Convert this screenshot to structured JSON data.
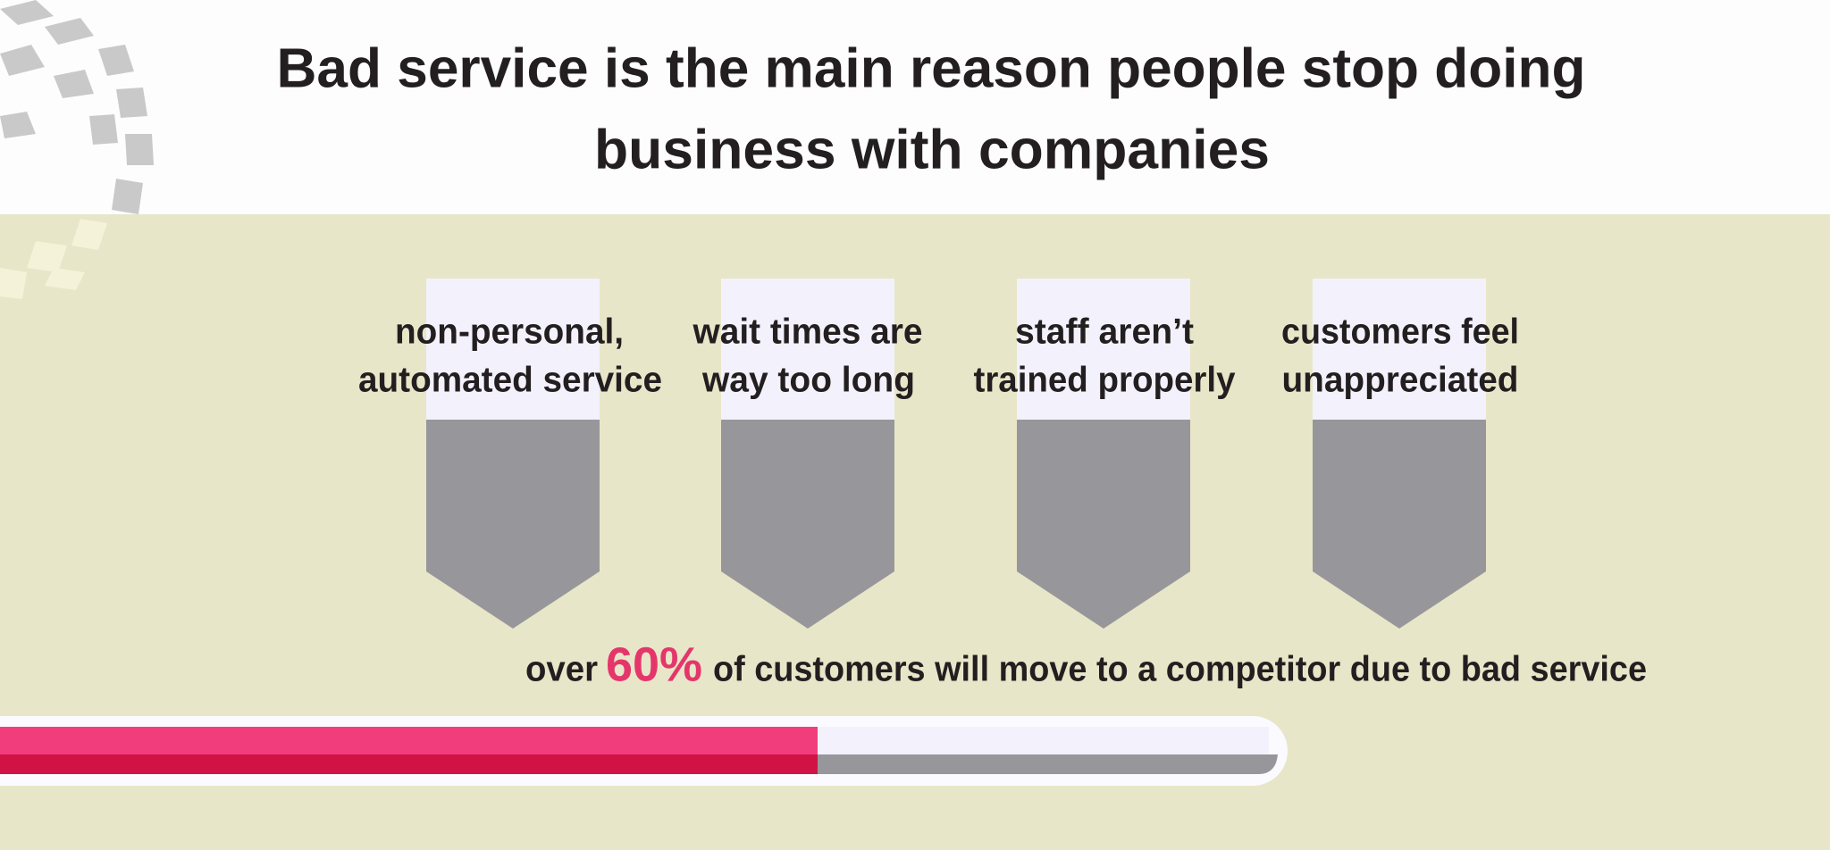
{
  "header": {
    "title_lines": [
      "Bad service is the main reason people stop doing",
      "business with companies"
    ]
  },
  "reasons": [
    {
      "lines": [
        "non-personal,",
        "automated service"
      ]
    },
    {
      "lines": [
        "wait times are",
        "way too long"
      ]
    },
    {
      "lines": [
        "staff aren’t",
        "trained properly"
      ]
    },
    {
      "lines": [
        "customers feel",
        "unappreciated"
      ]
    }
  ],
  "stat": {
    "prefix": "over",
    "highlight": "60%",
    "suffix": "of customers will move to a competitor due to bad service"
  }
}
